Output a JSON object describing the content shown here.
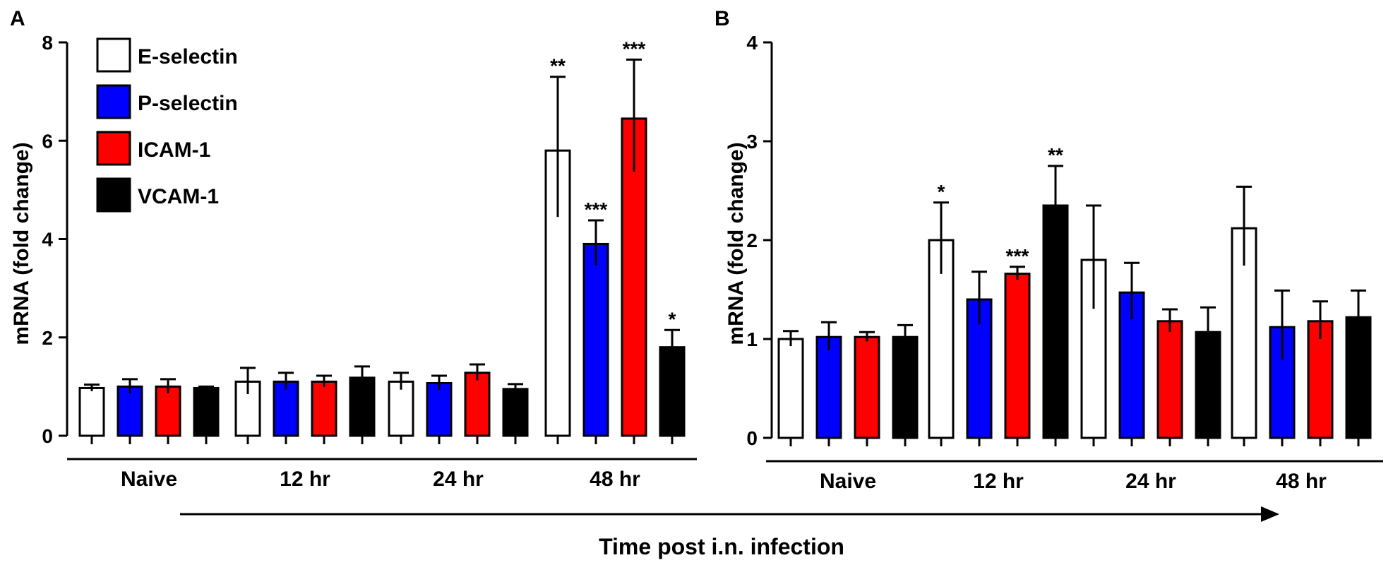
{
  "figure": {
    "x_title": "Time post i.n. infection",
    "legend": [
      {
        "label": "E-selectin",
        "color": "#ffffff"
      },
      {
        "label": "P-selectin",
        "color": "#0000ff"
      },
      {
        "label": "ICAM-1",
        "color": "#ff0000"
      },
      {
        "label": "VCAM-1",
        "color": "#000000"
      }
    ],
    "arrow_icon": "right-arrow-icon"
  },
  "chart_data": [
    {
      "panel": "A",
      "type": "bar",
      "ylabel": "mRNA (fold change)",
      "ylim": [
        0,
        8
      ],
      "yticks": [
        "0",
        "2",
        "4",
        "6",
        "8"
      ],
      "categories": [
        "Naive",
        "12 hr",
        "24 hr",
        "48 hr"
      ],
      "series": [
        {
          "name": "E-selectin",
          "color": "#ffffff",
          "values": [
            0.97,
            1.1,
            1.1,
            5.8
          ],
          "errors": [
            0.07,
            0.28,
            0.18,
            1.5
          ],
          "sig": [
            "",
            "",
            "",
            "**"
          ]
        },
        {
          "name": "P-selectin",
          "color": "#0000ff",
          "values": [
            1.0,
            1.1,
            1.07,
            3.9
          ],
          "errors": [
            0.15,
            0.18,
            0.15,
            0.48
          ],
          "sig": [
            "",
            "",
            "",
            "***"
          ]
        },
        {
          "name": "ICAM-1",
          "color": "#ff0000",
          "values": [
            1.0,
            1.1,
            1.28,
            6.45
          ],
          "errors": [
            0.15,
            0.12,
            0.17,
            1.2
          ],
          "sig": [
            "",
            "",
            "",
            "***"
          ]
        },
        {
          "name": "VCAM-1",
          "color": "#000000",
          "values": [
            0.97,
            1.18,
            0.95,
            1.8
          ],
          "errors": [
            0.03,
            0.23,
            0.1,
            0.35
          ],
          "sig": [
            "",
            "",
            "",
            "*"
          ]
        }
      ]
    },
    {
      "panel": "B",
      "type": "bar",
      "ylabel": "mRNA (fold change)",
      "ylim": [
        0,
        4
      ],
      "yticks": [
        "0",
        "1",
        "2",
        "3",
        "4"
      ],
      "categories": [
        "Naive",
        "12 hr",
        "24 hr",
        "48 hr"
      ],
      "series": [
        {
          "name": "E-selectin",
          "color": "#ffffff",
          "values": [
            1.0,
            2.0,
            1.8,
            2.12
          ],
          "errors": [
            0.08,
            0.38,
            0.55,
            0.42
          ],
          "sig": [
            "",
            "*",
            "",
            ""
          ]
        },
        {
          "name": "P-selectin",
          "color": "#0000ff",
          "values": [
            1.02,
            1.4,
            1.47,
            1.12
          ],
          "errors": [
            0.15,
            0.28,
            0.3,
            0.37
          ],
          "sig": [
            "",
            "",
            "",
            ""
          ]
        },
        {
          "name": "ICAM-1",
          "color": "#ff0000",
          "values": [
            1.02,
            1.66,
            1.18,
            1.18
          ],
          "errors": [
            0.05,
            0.07,
            0.12,
            0.2
          ],
          "sig": [
            "",
            "***",
            "",
            ""
          ]
        },
        {
          "name": "VCAM-1",
          "color": "#000000",
          "values": [
            1.02,
            2.35,
            1.07,
            1.22
          ],
          "errors": [
            0.12,
            0.4,
            0.25,
            0.27
          ],
          "sig": [
            "",
            "**",
            "",
            ""
          ]
        }
      ]
    }
  ]
}
